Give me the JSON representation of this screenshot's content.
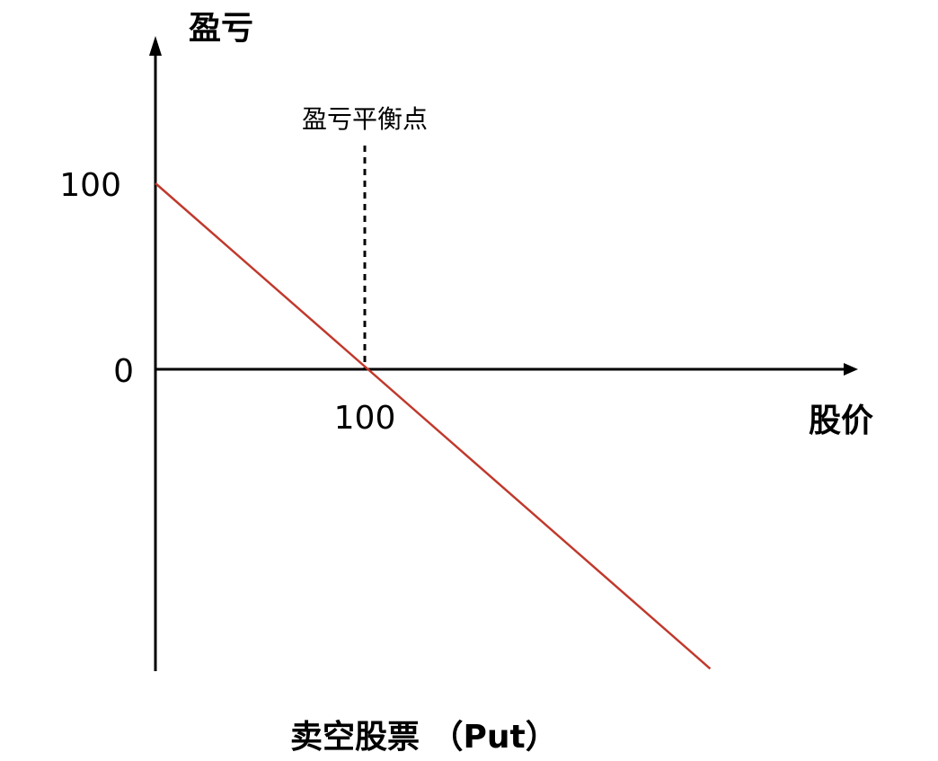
{
  "chart_data": {
    "type": "line",
    "title": "卖空股票 （Put）",
    "xlabel": "股价",
    "ylabel": "盈亏",
    "x_ticks": [
      "100"
    ],
    "y_ticks": [
      "100",
      "0"
    ],
    "xlim": [
      0,
      330
    ],
    "ylim": [
      -145,
      175
    ],
    "grid": false,
    "legend": "none",
    "annotation": {
      "text": "盈亏平衡点",
      "x": 100
    },
    "series": [
      {
        "points": [
          {
            "x": 0,
            "y": 100
          },
          {
            "x": 265,
            "y": -161
          }
        ],
        "color": "#c0392b"
      }
    ],
    "axis_color": "#000000"
  }
}
